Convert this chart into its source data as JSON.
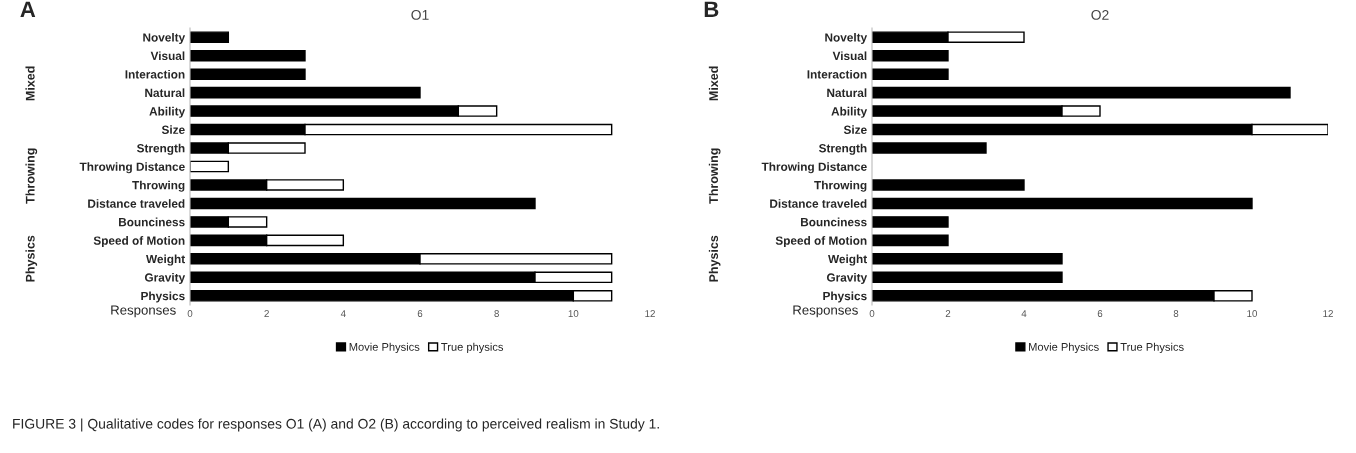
{
  "chart_data": [
    {
      "type": "bar",
      "orientation": "horizontal",
      "stacked": true,
      "title": "O1",
      "xlabel": "Responses",
      "categories": [
        "Novelty",
        "Visual",
        "Interaction",
        "Natural",
        "Ability",
        "Size",
        "Strength",
        "Throwing Distance",
        "Throwing",
        "Distance traveled",
        "Bounciness",
        "Speed of Motion",
        "Weight",
        "Gravity",
        "Physics"
      ],
      "series": [
        {
          "name": "Movie Physics",
          "color": "#000000",
          "values": [
            1,
            3,
            3,
            6,
            7,
            3,
            1,
            0,
            2,
            9,
            1,
            2,
            6,
            9,
            10
          ]
        },
        {
          "name": "True physics",
          "color": "#ffffff",
          "values": [
            0,
            0,
            0,
            0,
            1,
            8,
            2,
            1,
            2,
            0,
            1,
            2,
            5,
            2,
            1
          ]
        }
      ],
      "xlim": [
        0,
        12
      ],
      "xticks": [
        0,
        2,
        4,
        6,
        8,
        10,
        12
      ],
      "grid": false,
      "legend": "bottom",
      "annotations": [
        "A",
        "Mixed",
        "Throwing",
        "Physics",
        "FIGURE 3 | Qualitative codes for responses O1 (A) and O2 (B) according to perceived realism in Study 1."
      ]
    },
    {
      "type": "bar",
      "orientation": "horizontal",
      "stacked": true,
      "title": "O2",
      "xlabel": "Responses",
      "categories": [
        "Novelty",
        "Visual",
        "Interaction",
        "Natural",
        "Ability",
        "Size",
        "Strength",
        "Throwing Distance",
        "Throwing",
        "Distance traveled",
        "Bounciness",
        "Speed of Motion",
        "Weight",
        "Gravity",
        "Physics"
      ],
      "series": [
        {
          "name": "Movie Physics",
          "color": "#000000",
          "values": [
            2,
            2,
            2,
            11,
            5,
            10,
            3,
            0,
            4,
            10,
            2,
            2,
            5,
            5,
            9
          ]
        },
        {
          "name": "True Physics",
          "color": "#ffffff",
          "values": [
            2,
            0,
            0,
            0,
            1,
            2,
            0,
            0,
            0,
            0,
            0,
            0,
            0,
            0,
            1
          ]
        }
      ],
      "xlim": [
        0,
        12
      ],
      "xticks": [
        0,
        2,
        4,
        6,
        8,
        10,
        12
      ],
      "grid": false,
      "legend": "bottom",
      "annotations": [
        "B",
        "Mixed",
        "Throwing",
        "Physics"
      ]
    }
  ]
}
